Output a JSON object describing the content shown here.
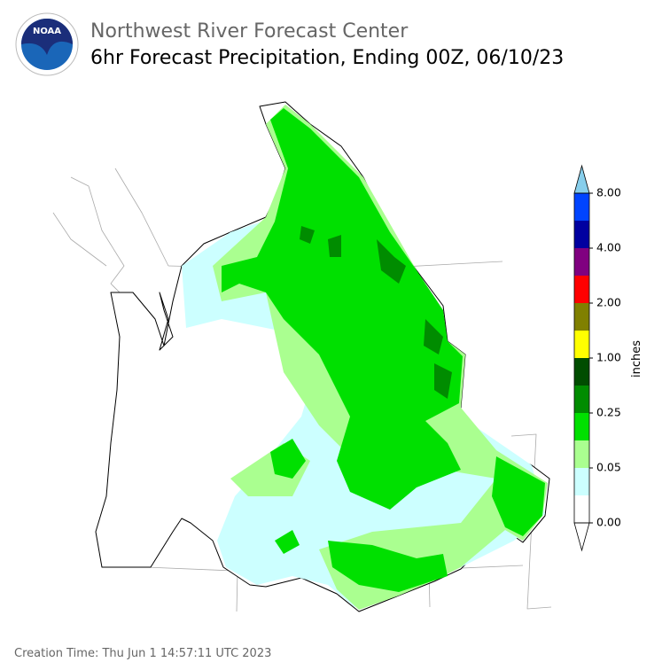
{
  "header": {
    "logo_text": "NOAA",
    "title": "Northwest River Forecast Center",
    "subtitle": "6hr Forecast Precipitation, Ending 00Z, 06/10/23"
  },
  "legend": {
    "label": "inches",
    "ticks": [
      "0.00",
      "0.05",
      "0.25",
      "1.00",
      "2.00",
      "4.00",
      "8.00"
    ],
    "colors": [
      "#ffffff",
      "#ccffff",
      "#aaff90",
      "#00e000",
      "#008c00",
      "#004d00",
      "#ffff00",
      "#808000",
      "#ff0000",
      "#800080",
      "#0000a0",
      "#0044ff"
    ],
    "over_color": "#87ceeb",
    "under_color": "#ffffff"
  },
  "footer": {
    "creation_time": "Creation Time: Thu Jun 1 14:57:11 UTC 2023"
  }
}
